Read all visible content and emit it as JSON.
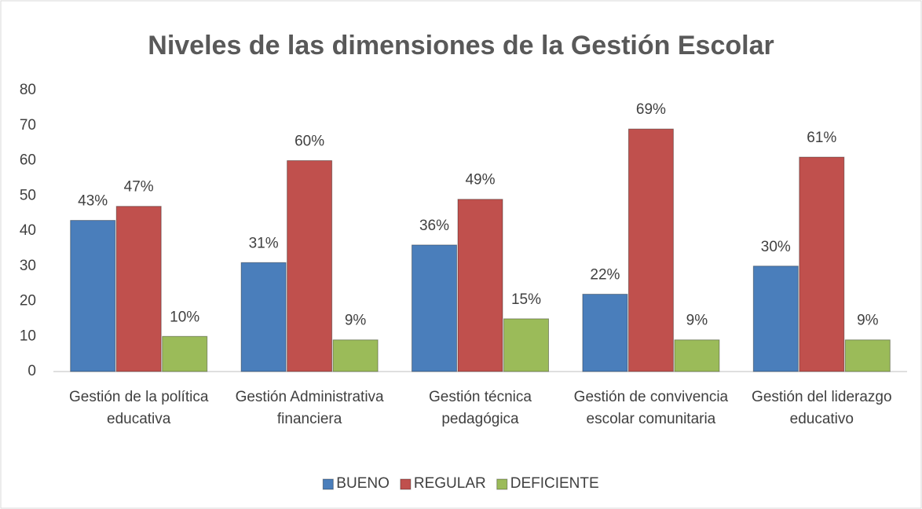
{
  "chart_data": {
    "type": "bar",
    "title": "Niveles de las dimensiones de  la Gestión Escolar",
    "categories": [
      "Gestión de la política educativa",
      "Gestión Administrativa financiera",
      "Gestión técnica pedagógica",
      "Gestión de convivencia escolar comunitaria",
      "Gestión del liderazgo educativo"
    ],
    "series": [
      {
        "name": "BUENO",
        "color": "#4a7ebb",
        "values": [
          43,
          31,
          36,
          22,
          30
        ],
        "value_labels": [
          "43%",
          "31%",
          "36%",
          "22%",
          "30%"
        ]
      },
      {
        "name": "REGULAR",
        "color": "#c0504d",
        "values": [
          47,
          60,
          49,
          69,
          61
        ],
        "value_labels": [
          "47%",
          "60%",
          "49%",
          "69%",
          "61%"
        ]
      },
      {
        "name": "DEFICIENTE",
        "color": "#9bbb59",
        "values": [
          10,
          9,
          15,
          9,
          9
        ],
        "value_labels": [
          "10%",
          "9%",
          "15%",
          "9%",
          "9%"
        ]
      }
    ],
    "ylim": [
      0,
      80
    ],
    "yticks": [
      0,
      10,
      20,
      30,
      40,
      50,
      60,
      70,
      80
    ],
    "grid": false,
    "legend": "bottom"
  }
}
